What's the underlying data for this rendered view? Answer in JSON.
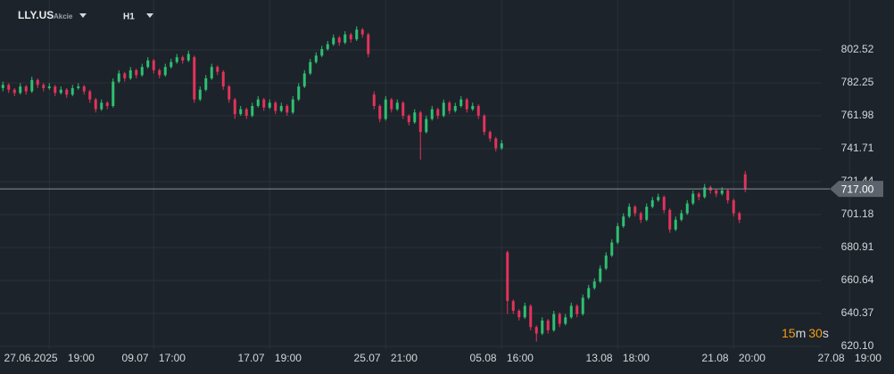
{
  "header": {
    "symbol": "LLY.US",
    "asset_class": "Akcie",
    "timeframe": "H1"
  },
  "countdown": {
    "minutes": 15,
    "minutes_unit": "m",
    "seconds": 30,
    "seconds_unit": "s"
  },
  "chart_data": {
    "type": "candlestick",
    "up_color": "#2fbf71",
    "down_color": "#e2335a",
    "grid": true,
    "ylim": [
      603.1,
      833.2
    ],
    "yticks": [
      802.52,
      782.25,
      761.98,
      741.71,
      721.44,
      701.18,
      680.91,
      660.64,
      640.37,
      {
        "value": 620.1,
        "label": "620.10"
      }
    ],
    "last_price": {
      "value": 717,
      "label": "717.00"
    },
    "categories": [
      null,
      null,
      null,
      null,
      null,
      null,
      null,
      null,
      "27.06.2025 19:00",
      null,
      null,
      null,
      null,
      null,
      null,
      null,
      null,
      null,
      null,
      null,
      null,
      null,
      null,
      null,
      null,
      null,
      "09.07 17:00",
      null,
      null,
      null,
      null,
      null,
      null,
      null,
      null,
      null,
      null,
      null,
      null,
      null,
      null,
      null,
      null,
      null,
      null,
      null,
      "17.07 19:00",
      null,
      null,
      null,
      null,
      null,
      null,
      null,
      null,
      null,
      null,
      null,
      null,
      null,
      null,
      null,
      null,
      null,
      null,
      null,
      "25.07 21:00",
      null,
      null,
      null,
      null,
      null,
      null,
      null,
      null,
      null,
      null,
      null,
      null,
      null,
      null,
      null,
      null,
      null,
      null,
      null,
      "05.08 16:00",
      null,
      null,
      null,
      null,
      null,
      null,
      null,
      null,
      null,
      null,
      null,
      null,
      null,
      null,
      null,
      null,
      null,
      null,
      null,
      "13.08 18:00",
      null,
      null,
      null,
      null,
      null,
      null,
      null,
      null,
      null,
      null,
      null,
      null,
      null,
      null,
      null,
      null,
      null,
      null,
      null,
      "21.08 20:00",
      null,
      null,
      null,
      null,
      null,
      null,
      null,
      null,
      null,
      null,
      null,
      null,
      null,
      null,
      null,
      null,
      null,
      null,
      null,
      "27.08 19:00",
      null
    ],
    "ohlc": [
      [
        779,
        783,
        777,
        781
      ],
      [
        781,
        782,
        776,
        778
      ],
      [
        778,
        779,
        774,
        776
      ],
      [
        776,
        782,
        775,
        780
      ],
      [
        780,
        781,
        775,
        777
      ],
      [
        777,
        786,
        776,
        784
      ],
      [
        784,
        785,
        779,
        781
      ],
      [
        781,
        782,
        777,
        779
      ],
      [
        779,
        782,
        778,
        780
      ],
      [
        780,
        781,
        774,
        776
      ],
      [
        776,
        780,
        775,
        778
      ],
      [
        778,
        779,
        773,
        775
      ],
      [
        775,
        781,
        774,
        779
      ],
      [
        779,
        782,
        778,
        780
      ],
      [
        780,
        781,
        775,
        777
      ],
      [
        777,
        778,
        770,
        772
      ],
      [
        772,
        773,
        764,
        766
      ],
      [
        766,
        772,
        765,
        770
      ],
      [
        770,
        771,
        766,
        768
      ],
      [
        768,
        785,
        767,
        783
      ],
      [
        783,
        790,
        782,
        788
      ],
      [
        788,
        789,
        783,
        785
      ],
      [
        785,
        792,
        784,
        790
      ],
      [
        790,
        791,
        785,
        787
      ],
      [
        787,
        794,
        786,
        792
      ],
      [
        792,
        798,
        791,
        796
      ],
      [
        796,
        797,
        788,
        790
      ],
      [
        790,
        791,
        785,
        787
      ],
      [
        787,
        794,
        786,
        792
      ],
      [
        792,
        797,
        791,
        795
      ],
      [
        795,
        800,
        794,
        798
      ],
      [
        798,
        799,
        794,
        796
      ],
      [
        796,
        802,
        795,
        800
      ],
      [
        798,
        799,
        770,
        772
      ],
      [
        772,
        780,
        771,
        778
      ],
      [
        778,
        787,
        777,
        785
      ],
      [
        785,
        794,
        784,
        792
      ],
      [
        792,
        793,
        787,
        789
      ],
      [
        789,
        790,
        778,
        780
      ],
      [
        780,
        781,
        770,
        772
      ],
      [
        772,
        773,
        760,
        763
      ],
      [
        763,
        768,
        762,
        766
      ],
      [
        766,
        767,
        760,
        762
      ],
      [
        762,
        770,
        761,
        768
      ],
      [
        768,
        774,
        767,
        772
      ],
      [
        772,
        773,
        765,
        767
      ],
      [
        767,
        772,
        766,
        770
      ],
      [
        770,
        771,
        763,
        765
      ],
      [
        765,
        770,
        764,
        768
      ],
      [
        768,
        769,
        762,
        764
      ],
      [
        764,
        774,
        763,
        772
      ],
      [
        772,
        782,
        771,
        780
      ],
      [
        780,
        790,
        779,
        788
      ],
      [
        788,
        797,
        787,
        795
      ],
      [
        795,
        801,
        794,
        799
      ],
      [
        799,
        805,
        798,
        803
      ],
      [
        803,
        808,
        802,
        806
      ],
      [
        806,
        812,
        805,
        810
      ],
      [
        810,
        811,
        805,
        807
      ],
      [
        807,
        814,
        806,
        812
      ],
      [
        812,
        813,
        807,
        809
      ],
      [
        809,
        817,
        808,
        815
      ],
      [
        815,
        816,
        810,
        812
      ],
      [
        812,
        813,
        798,
        800
      ],
      [
        775,
        777,
        766,
        768
      ],
      [
        768,
        769,
        758,
        760
      ],
      [
        760,
        774,
        759,
        772
      ],
      [
        772,
        773,
        764,
        766
      ],
      [
        766,
        772,
        765,
        770
      ],
      [
        770,
        771,
        760,
        762
      ],
      [
        762,
        763,
        756,
        758
      ],
      [
        758,
        766,
        757,
        764
      ],
      [
        764,
        765,
        735,
        752
      ],
      [
        752,
        762,
        751,
        760
      ],
      [
        760,
        768,
        759,
        766
      ],
      [
        766,
        767,
        760,
        762
      ],
      [
        762,
        772,
        761,
        770
      ],
      [
        770,
        771,
        763,
        765
      ],
      [
        765,
        770,
        764,
        768
      ],
      [
        768,
        774,
        767,
        772
      ],
      [
        772,
        773,
        764,
        766
      ],
      [
        766,
        770,
        765,
        768
      ],
      [
        768,
        769,
        760,
        762
      ],
      [
        762,
        763,
        750,
        752
      ],
      [
        752,
        753,
        746,
        748
      ],
      [
        748,
        749,
        740,
        742
      ],
      [
        742,
        747,
        741,
        745
      ],
      [
        678,
        679,
        640,
        648
      ],
      [
        648,
        649,
        640,
        642
      ],
      [
        642,
        643,
        636,
        638
      ],
      [
        638,
        647,
        637,
        645
      ],
      [
        645,
        646,
        630,
        632
      ],
      [
        632,
        633,
        623,
        628
      ],
      [
        628,
        638,
        627,
        636
      ],
      [
        636,
        637,
        628,
        630
      ],
      [
        630,
        642,
        629,
        640
      ],
      [
        640,
        641,
        632,
        634
      ],
      [
        634,
        640,
        633,
        638
      ],
      [
        638,
        647,
        637,
        645
      ],
      [
        645,
        646,
        638,
        640
      ],
      [
        640,
        652,
        639,
        650
      ],
      [
        650,
        658,
        649,
        656
      ],
      [
        656,
        662,
        655,
        660
      ],
      [
        660,
        670,
        659,
        668
      ],
      [
        668,
        678,
        667,
        676
      ],
      [
        676,
        686,
        675,
        684
      ],
      [
        684,
        696,
        683,
        694
      ],
      [
        694,
        702,
        693,
        700
      ],
      [
        700,
        708,
        699,
        706
      ],
      [
        706,
        707,
        700,
        702
      ],
      [
        702,
        703,
        696,
        698
      ],
      [
        698,
        708,
        697,
        706
      ],
      [
        706,
        712,
        705,
        710
      ],
      [
        710,
        714,
        709,
        712
      ],
      [
        712,
        713,
        702,
        704
      ],
      [
        704,
        705,
        690,
        692
      ],
      [
        692,
        700,
        691,
        698
      ],
      [
        698,
        704,
        697,
        702
      ],
      [
        702,
        710,
        701,
        708
      ],
      [
        708,
        716,
        707,
        714
      ],
      [
        714,
        715,
        710,
        712
      ],
      [
        712,
        720,
        711,
        718
      ],
      [
        718,
        719,
        714,
        716
      ],
      [
        716,
        717,
        712,
        714
      ],
      [
        714,
        718,
        713,
        716
      ],
      [
        716,
        717,
        708,
        710
      ],
      [
        710,
        711,
        700,
        702
      ],
      [
        702,
        703,
        696,
        698
      ],
      [
        726,
        728,
        715,
        717
      ],
      null,
      null,
      null,
      null,
      null,
      null,
      null,
      null,
      null,
      null,
      null,
      null,
      null,
      null,
      null,
      null,
      null,
      null,
      null
    ]
  }
}
